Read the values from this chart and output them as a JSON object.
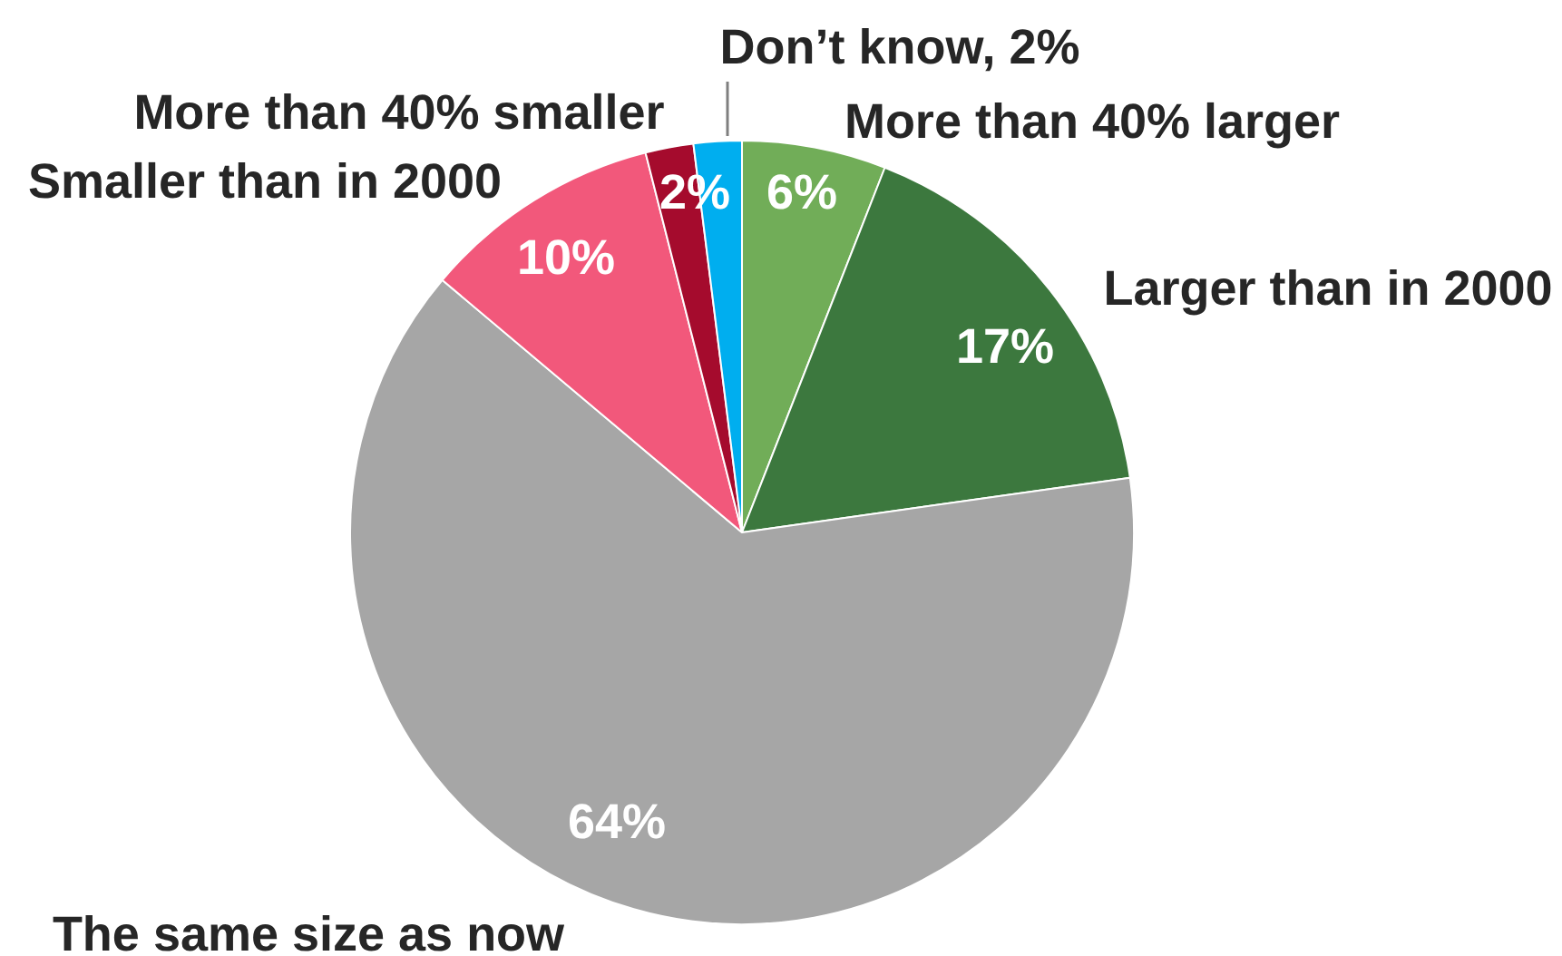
{
  "chart_data": {
    "type": "pie",
    "categories": [
      "More than 40% larger",
      "Larger than in 2000",
      "The same size as now",
      "Smaller than in 2000",
      "More than 40% smaller",
      "Don’t know, 2%"
    ],
    "values": [
      6,
      17,
      64,
      10,
      2,
      2
    ],
    "colors": [
      "#71ad58",
      "#3c783e",
      "#a6a6a6",
      "#f2587b",
      "#a50b2d",
      "#00aeef"
    ],
    "value_labels": [
      "6%",
      "17%",
      "64%",
      "10%",
      "2%",
      null
    ]
  }
}
